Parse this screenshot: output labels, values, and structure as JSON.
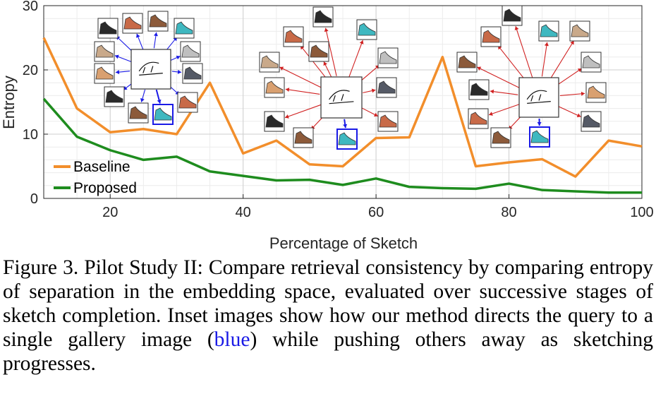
{
  "chart_data": {
    "type": "line",
    "xlabel": "Percentage of Sketch",
    "ylabel": "Entropy",
    "xlim": [
      10,
      100
    ],
    "ylim": [
      0,
      30
    ],
    "xticks": [
      20,
      40,
      60,
      80,
      100
    ],
    "yticks": [
      0,
      10,
      20,
      30
    ],
    "grid": "on",
    "legend_position": "bottom-left",
    "x": [
      10,
      15,
      20,
      25,
      30,
      35,
      40,
      45,
      50,
      55,
      60,
      65,
      70,
      75,
      80,
      85,
      90,
      95,
      100
    ],
    "series": [
      {
        "name": "Baseline",
        "color": "#f28e2b",
        "values": [
          25,
          14,
          10.3,
          10.8,
          10,
          18,
          7,
          9,
          5.3,
          5,
          9.4,
          9.5,
          22,
          5,
          5.6,
          6.1,
          3.4,
          9,
          8.1
        ]
      },
      {
        "name": "Proposed",
        "color": "#1e8c1e",
        "values": [
          15.5,
          9.6,
          7.5,
          6,
          6.5,
          4.2,
          3.5,
          2.8,
          2.9,
          2.1,
          3.1,
          1.8,
          1.6,
          1.5,
          2.3,
          1.3,
          1.1,
          0.9,
          0.9
        ]
      }
    ]
  },
  "insets": {
    "blue_color": "#1a1ae6",
    "colors": {
      "group1_arrow": "#1a1ae6",
      "group2_arrow": "#d02020",
      "group3_arrow": "#d02020"
    }
  },
  "caption": {
    "label": "Figure 3.",
    "text_before": "Pilot Study II: Compare retrieval consistency by comparing entropy of separation in the embedding space, evaluated over successive stages of sketch completion. Inset images show how our method directs the query to a single gallery image (",
    "blue_word": "blue",
    "text_after": ") while pushing others away as sketching progresses."
  }
}
